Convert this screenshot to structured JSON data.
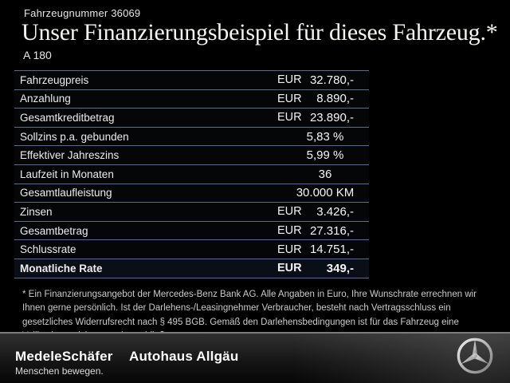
{
  "header": {
    "vehicle_number": "Fahrzeugnummer 36069",
    "title": "Unser Finanzierungsbeispiel für dieses Fahrzeug.*",
    "model": "A 180"
  },
  "table": {
    "rows": [
      {
        "label": "Fahrzeugpreis",
        "currency": "EUR",
        "value": "32.780,-",
        "bold": false
      },
      {
        "label": "Anzahlung",
        "currency": "EUR",
        "value": "8.890,-",
        "bold": false
      },
      {
        "label": "Gesamtkreditbetrag",
        "currency": "EUR",
        "value": "23.890,-",
        "bold": false
      },
      {
        "label": "Sollzins p.a. gebunden",
        "currency": "",
        "value": "5,83 %",
        "bold": false
      },
      {
        "label": "Effektiver Jahreszins",
        "currency": "",
        "value": "5,99 %",
        "bold": false
      },
      {
        "label": "Laufzeit in Monaten",
        "currency": "",
        "value": "36",
        "bold": false
      },
      {
        "label": "Gesamtlaufleistung",
        "currency": "",
        "value": "30.000 KM",
        "bold": false
      },
      {
        "label": "Zinsen",
        "currency": "EUR",
        "value": "3.426,-",
        "bold": false
      },
      {
        "label": "Gesamtbetrag",
        "currency": "EUR",
        "value": "27.316,-",
        "bold": false
      },
      {
        "label": "Schlussrate",
        "currency": "EUR",
        "value": "14.751,-",
        "bold": false
      },
      {
        "label": "Monatliche Rate",
        "currency": "EUR",
        "value": "349,-",
        "bold": true
      }
    ]
  },
  "footnote": "* Ein Finanzierungsangebot der Mercedes-Benz Bank AG. Alle Angaben in Euro, Ihre Wunschrate errechnen wir Ihnen gerne persönlich. Ist der Darlehens-/Leasingnehmer Verbraucher, besteht nach Vertragsschluss ein gesetzliches Widerrufsrecht nach § 495 BGB. Gemäß den Darlehensbedingungen ist für das Fahrzeug eine Vollkaskoversicherung abzuschließen.",
  "footer": {
    "dealer_logo": "MedeleSchäfer",
    "dealer_secondary": "Autohaus Allgäu",
    "tagline": "Menschen bewegen.",
    "brand_icon": "mercedes-star-icon"
  },
  "colors": {
    "background": "#000000",
    "separator_line": "#5c6c86",
    "footer_divider": "#7c7c7c",
    "text_primary": "#f4f4f0",
    "star_silver": "#d8d8d8"
  }
}
